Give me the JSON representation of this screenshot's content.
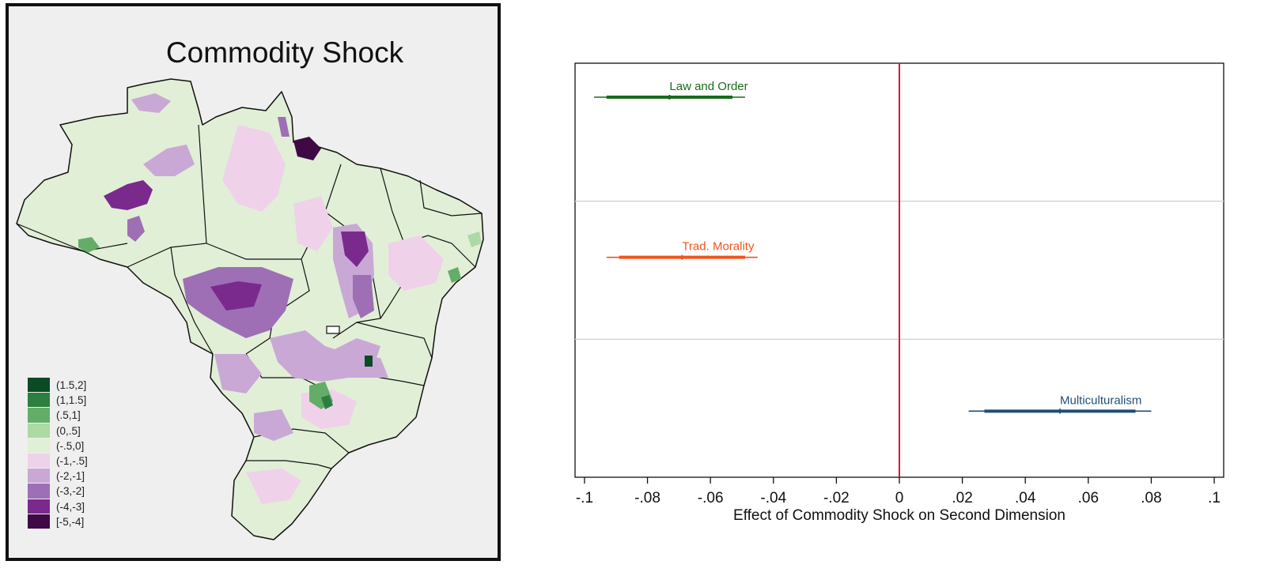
{
  "map": {
    "title": "Commodity Shock",
    "legend": [
      {
        "label": "(1.5,2]",
        "color": "#0b4a24"
      },
      {
        "label": "(1,1.5]",
        "color": "#2d7e3f"
      },
      {
        "label": "(.5,1]",
        "color": "#64ad68"
      },
      {
        "label": "(0,.5]",
        "color": "#acd9a4"
      },
      {
        "label": "(-.5,0]",
        "color": "#e1efd6"
      },
      {
        "label": "(-1,-.5]",
        "color": "#efd2ea"
      },
      {
        "label": "(-2,-1]",
        "color": "#c9a8d6"
      },
      {
        "label": "(-3,-2]",
        "color": "#9e6fb5"
      },
      {
        "label": "(-4,-3]",
        "color": "#7a2a8d"
      },
      {
        "label": "[-5,-4]",
        "color": "#3e0a45"
      }
    ]
  },
  "chart_data": {
    "type": "scatter",
    "xlabel": "Effect of Commodity Shock on Second Dimension",
    "xlim": [
      -0.103,
      0.103
    ],
    "xticks": [
      {
        "value": -0.1,
        "label": "-.1"
      },
      {
        "value": -0.08,
        "label": "-.08"
      },
      {
        "value": -0.06,
        "label": "-.06"
      },
      {
        "value": -0.04,
        "label": "-.04"
      },
      {
        "value": -0.02,
        "label": "-.02"
      },
      {
        "value": 0,
        "label": "0"
      },
      {
        "value": 0.02,
        "label": ".02"
      },
      {
        "value": 0.04,
        "label": ".04"
      },
      {
        "value": 0.06,
        "label": ".06"
      },
      {
        "value": 0.08,
        "label": ".08"
      },
      {
        "value": 0.1,
        "label": ".1"
      }
    ],
    "reference_line": {
      "x": 0,
      "color": "#e0103a"
    },
    "grid": "horizontal",
    "series": [
      {
        "name": "Law and Order",
        "estimate": -0.073,
        "ci90": [
          -0.093,
          -0.053
        ],
        "ci95": [
          -0.097,
          -0.049
        ],
        "color": "#1a6b1a"
      },
      {
        "name": "Trad. Morality",
        "estimate": -0.069,
        "ci90": [
          -0.089,
          -0.049
        ],
        "ci95": [
          -0.093,
          -0.045
        ],
        "color": "#f2531c"
      },
      {
        "name": "Multiculturalism",
        "estimate": 0.051,
        "ci90": [
          0.027,
          0.075
        ],
        "ci95": [
          0.022,
          0.08
        ],
        "color": "#1f4e79"
      }
    ]
  }
}
